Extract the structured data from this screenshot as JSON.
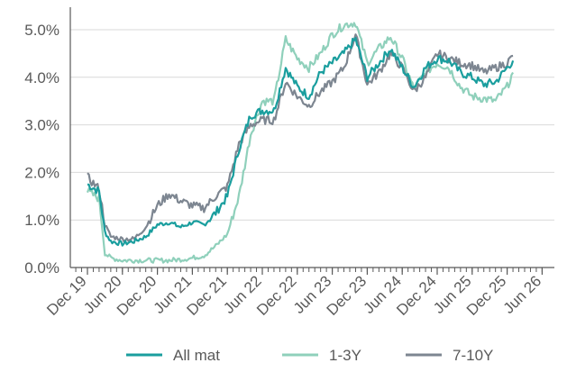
{
  "chart_data": {
    "type": "line",
    "title": "",
    "xlabel": "",
    "ylabel": "",
    "ylim": [
      0,
      5.0
    ],
    "y_ticks": [
      "0.0%",
      "1.0%",
      "2.0%",
      "3.0%",
      "4.0%",
      "5.0%"
    ],
    "x_ticks": [
      "Dec 19",
      "Jun 20",
      "Dec 20",
      "Jun 21",
      "Dec 21",
      "Jun 22",
      "Dec 22",
      "Jun 23",
      "Dec 23",
      "Jun 24",
      "Dec 24",
      "Jun 25",
      "Dec 25",
      "Jun 26"
    ],
    "grid": "horizontal",
    "legend_position": "bottom",
    "x": [
      "Dec 19",
      "Feb 20",
      "Mar 20",
      "Apr 20",
      "Jun 20",
      "Aug 20",
      "Oct 20",
      "Dec 20",
      "Feb 21",
      "Apr 21",
      "Jun 21",
      "Aug 21",
      "Oct 21",
      "Dec 21",
      "Feb 22",
      "Apr 22",
      "Jun 22",
      "Aug 22",
      "Oct 22",
      "Dec 22",
      "Feb 23",
      "Apr 23",
      "Jun 23",
      "Aug 23",
      "Oct 23",
      "Dec 23",
      "Feb 24",
      "Apr 24",
      "Jun 24",
      "Aug 24",
      "Oct 24",
      "Dec 24",
      "Feb 25",
      "Apr 25",
      "Jun 25",
      "Aug 25",
      "Oct 25",
      "Dec 25",
      "Jan 26"
    ],
    "series": [
      {
        "name": "All mat",
        "color": "#1a9e9e",
        "values": [
          1.75,
          1.6,
          0.75,
          0.55,
          0.5,
          0.55,
          0.65,
          0.9,
          0.95,
          0.85,
          0.95,
          0.9,
          1.15,
          1.5,
          2.5,
          3.2,
          3.3,
          3.3,
          4.2,
          3.8,
          3.6,
          4.1,
          4.3,
          4.5,
          4.8,
          4.0,
          4.3,
          4.6,
          4.2,
          3.8,
          4.2,
          4.4,
          4.35,
          4.1,
          4.0,
          3.85,
          3.9,
          4.2,
          4.35
        ]
      },
      {
        "name": "1-3Y",
        "color": "#8fd0bb",
        "values": [
          1.6,
          1.45,
          0.3,
          0.2,
          0.15,
          0.15,
          0.15,
          0.15,
          0.15,
          0.17,
          0.2,
          0.25,
          0.45,
          0.7,
          1.5,
          2.8,
          3.5,
          3.5,
          4.8,
          4.4,
          4.2,
          4.5,
          4.9,
          5.1,
          5.15,
          4.3,
          4.6,
          4.85,
          4.4,
          3.75,
          4.1,
          4.3,
          4.2,
          3.8,
          3.6,
          3.55,
          3.5,
          3.8,
          4.1
        ]
      },
      {
        "name": "7-10Y",
        "color": "#7d8691",
        "values": [
          1.9,
          1.65,
          0.9,
          0.65,
          0.6,
          0.6,
          0.85,
          1.3,
          1.55,
          1.4,
          1.3,
          1.25,
          1.5,
          1.7,
          2.6,
          3.0,
          3.1,
          3.1,
          3.9,
          3.6,
          3.4,
          3.7,
          3.9,
          4.2,
          4.9,
          3.85,
          4.1,
          4.5,
          4.2,
          3.7,
          4.0,
          4.5,
          4.4,
          4.3,
          4.25,
          4.1,
          4.2,
          4.3,
          4.45
        ]
      }
    ]
  }
}
